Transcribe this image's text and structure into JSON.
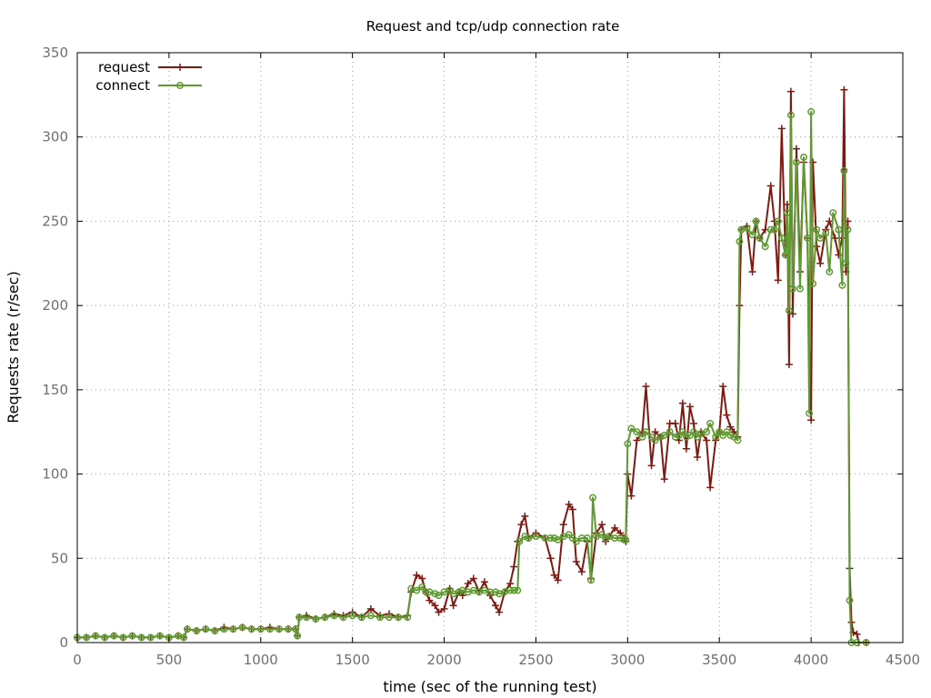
{
  "chart_data": {
    "type": "line",
    "title": "Request and tcp/udp connection rate",
    "xlabel": "time (sec of the running test)",
    "ylabel": "Requests rate (r/sec)",
    "xlim": [
      0,
      4500
    ],
    "ylim": [
      0,
      350
    ],
    "xticks": [
      0,
      500,
      1000,
      1500,
      2000,
      2500,
      3000,
      3500,
      4000,
      4500
    ],
    "yticks": [
      0,
      50,
      100,
      150,
      200,
      250,
      300,
      350
    ],
    "grid": true,
    "legend_position": "top-left",
    "series": [
      {
        "name": "request",
        "color": "#7f1a12",
        "marker": "plus",
        "points": [
          [
            0,
            3
          ],
          [
            50,
            3
          ],
          [
            100,
            4
          ],
          [
            150,
            3
          ],
          [
            200,
            4
          ],
          [
            250,
            3
          ],
          [
            300,
            4
          ],
          [
            350,
            3
          ],
          [
            400,
            3
          ],
          [
            450,
            4
          ],
          [
            500,
            3
          ],
          [
            550,
            4
          ],
          [
            580,
            3
          ],
          [
            600,
            8
          ],
          [
            650,
            7
          ],
          [
            700,
            8
          ],
          [
            750,
            7
          ],
          [
            800,
            9
          ],
          [
            850,
            8
          ],
          [
            900,
            9
          ],
          [
            950,
            8
          ],
          [
            1000,
            8
          ],
          [
            1050,
            9
          ],
          [
            1100,
            8
          ],
          [
            1150,
            8
          ],
          [
            1190,
            8
          ],
          [
            1200,
            4
          ],
          [
            1210,
            15
          ],
          [
            1250,
            16
          ],
          [
            1300,
            14
          ],
          [
            1350,
            15
          ],
          [
            1400,
            17
          ],
          [
            1450,
            16
          ],
          [
            1500,
            18
          ],
          [
            1550,
            15
          ],
          [
            1600,
            20
          ],
          [
            1650,
            16
          ],
          [
            1700,
            17
          ],
          [
            1750,
            15
          ],
          [
            1800,
            16
          ],
          [
            1820,
            30
          ],
          [
            1850,
            40
          ],
          [
            1880,
            38
          ],
          [
            1900,
            30
          ],
          [
            1920,
            25
          ],
          [
            1950,
            22
          ],
          [
            1970,
            18
          ],
          [
            2000,
            20
          ],
          [
            2030,
            32
          ],
          [
            2050,
            22
          ],
          [
            2080,
            30
          ],
          [
            2100,
            28
          ],
          [
            2130,
            35
          ],
          [
            2160,
            38
          ],
          [
            2190,
            30
          ],
          [
            2220,
            36
          ],
          [
            2250,
            28
          ],
          [
            2280,
            22
          ],
          [
            2300,
            18
          ],
          [
            2330,
            30
          ],
          [
            2360,
            35
          ],
          [
            2380,
            45
          ],
          [
            2400,
            60
          ],
          [
            2420,
            70
          ],
          [
            2440,
            75
          ],
          [
            2460,
            62
          ],
          [
            2500,
            65
          ],
          [
            2550,
            62
          ],
          [
            2580,
            50
          ],
          [
            2600,
            40
          ],
          [
            2620,
            37
          ],
          [
            2650,
            70
          ],
          [
            2680,
            82
          ],
          [
            2700,
            79
          ],
          [
            2720,
            48
          ],
          [
            2750,
            42
          ],
          [
            2780,
            60
          ],
          [
            2800,
            38
          ],
          [
            2830,
            65
          ],
          [
            2860,
            70
          ],
          [
            2880,
            60
          ],
          [
            2900,
            63
          ],
          [
            2930,
            68
          ],
          [
            2960,
            65
          ],
          [
            2980,
            62
          ],
          [
            2990,
            60
          ],
          [
            3000,
            100
          ],
          [
            3020,
            87
          ],
          [
            3050,
            120
          ],
          [
            3080,
            125
          ],
          [
            3100,
            152
          ],
          [
            3130,
            105
          ],
          [
            3150,
            125
          ],
          [
            3180,
            122
          ],
          [
            3200,
            97
          ],
          [
            3230,
            130
          ],
          [
            3260,
            130
          ],
          [
            3280,
            120
          ],
          [
            3300,
            142
          ],
          [
            3320,
            115
          ],
          [
            3340,
            140
          ],
          [
            3360,
            130
          ],
          [
            3380,
            110
          ],
          [
            3400,
            125
          ],
          [
            3430,
            120
          ],
          [
            3450,
            92
          ],
          [
            3480,
            120
          ],
          [
            3500,
            125
          ],
          [
            3520,
            152
          ],
          [
            3540,
            135
          ],
          [
            3560,
            128
          ],
          [
            3580,
            125
          ],
          [
            3600,
            122
          ],
          [
            3610,
            200
          ],
          [
            3620,
            245
          ],
          [
            3650,
            247
          ],
          [
            3680,
            220
          ],
          [
            3700,
            250
          ],
          [
            3720,
            240
          ],
          [
            3750,
            245
          ],
          [
            3780,
            271
          ],
          [
            3800,
            250
          ],
          [
            3820,
            215
          ],
          [
            3840,
            305
          ],
          [
            3860,
            230
          ],
          [
            3870,
            260
          ],
          [
            3880,
            165
          ],
          [
            3890,
            327
          ],
          [
            3900,
            195
          ],
          [
            3920,
            293
          ],
          [
            3940,
            220
          ],
          [
            3960,
            285
          ],
          [
            3980,
            240
          ],
          [
            4000,
            132
          ],
          [
            4010,
            285
          ],
          [
            4030,
            235
          ],
          [
            4050,
            225
          ],
          [
            4080,
            245
          ],
          [
            4100,
            250
          ],
          [
            4130,
            240
          ],
          [
            4150,
            230
          ],
          [
            4170,
            240
          ],
          [
            4180,
            328
          ],
          [
            4190,
            220
          ],
          [
            4200,
            250
          ],
          [
            4210,
            44
          ],
          [
            4220,
            12
          ],
          [
            4230,
            6
          ],
          [
            4250,
            5
          ],
          [
            4260,
            0
          ],
          [
            4300,
            0
          ]
        ]
      },
      {
        "name": "connect",
        "color": "#5e9a31",
        "marker": "circle",
        "points": [
          [
            0,
            3
          ],
          [
            50,
            3
          ],
          [
            100,
            4
          ],
          [
            150,
            3
          ],
          [
            200,
            4
          ],
          [
            250,
            3
          ],
          [
            300,
            4
          ],
          [
            350,
            3
          ],
          [
            400,
            3
          ],
          [
            450,
            4
          ],
          [
            500,
            3
          ],
          [
            550,
            4
          ],
          [
            580,
            3
          ],
          [
            600,
            8
          ],
          [
            650,
            7
          ],
          [
            700,
            8
          ],
          [
            750,
            7
          ],
          [
            800,
            8
          ],
          [
            850,
            8
          ],
          [
            900,
            9
          ],
          [
            950,
            8
          ],
          [
            1000,
            8
          ],
          [
            1050,
            8
          ],
          [
            1100,
            8
          ],
          [
            1150,
            8
          ],
          [
            1190,
            8
          ],
          [
            1200,
            4
          ],
          [
            1210,
            15
          ],
          [
            1250,
            15
          ],
          [
            1300,
            14
          ],
          [
            1350,
            15
          ],
          [
            1400,
            16
          ],
          [
            1450,
            15
          ],
          [
            1500,
            16
          ],
          [
            1550,
            15
          ],
          [
            1600,
            16
          ],
          [
            1650,
            15
          ],
          [
            1700,
            15
          ],
          [
            1750,
            15
          ],
          [
            1800,
            15
          ],
          [
            1820,
            32
          ],
          [
            1850,
            31
          ],
          [
            1880,
            33
          ],
          [
            1900,
            30
          ],
          [
            1920,
            30
          ],
          [
            1950,
            29
          ],
          [
            1970,
            28
          ],
          [
            2000,
            30
          ],
          [
            2030,
            31
          ],
          [
            2050,
            29
          ],
          [
            2080,
            30
          ],
          [
            2100,
            31
          ],
          [
            2130,
            30
          ],
          [
            2160,
            31
          ],
          [
            2190,
            30
          ],
          [
            2220,
            31
          ],
          [
            2250,
            30
          ],
          [
            2280,
            30
          ],
          [
            2300,
            29
          ],
          [
            2330,
            30
          ],
          [
            2360,
            31
          ],
          [
            2380,
            31
          ],
          [
            2400,
            31
          ],
          [
            2410,
            60
          ],
          [
            2440,
            63
          ],
          [
            2460,
            62
          ],
          [
            2500,
            63
          ],
          [
            2550,
            62
          ],
          [
            2580,
            62
          ],
          [
            2600,
            62
          ],
          [
            2620,
            61
          ],
          [
            2650,
            63
          ],
          [
            2680,
            64
          ],
          [
            2700,
            62
          ],
          [
            2720,
            60
          ],
          [
            2750,
            62
          ],
          [
            2780,
            62
          ],
          [
            2800,
            37
          ],
          [
            2810,
            86
          ],
          [
            2830,
            63
          ],
          [
            2860,
            64
          ],
          [
            2880,
            62
          ],
          [
            2900,
            63
          ],
          [
            2930,
            62
          ],
          [
            2960,
            62
          ],
          [
            2980,
            61
          ],
          [
            2990,
            61
          ],
          [
            3000,
            118
          ],
          [
            3020,
            127
          ],
          [
            3050,
            125
          ],
          [
            3080,
            122
          ],
          [
            3100,
            125
          ],
          [
            3130,
            122
          ],
          [
            3150,
            120
          ],
          [
            3180,
            122
          ],
          [
            3200,
            123
          ],
          [
            3230,
            125
          ],
          [
            3260,
            122
          ],
          [
            3280,
            123
          ],
          [
            3300,
            125
          ],
          [
            3320,
            122
          ],
          [
            3340,
            123
          ],
          [
            3360,
            125
          ],
          [
            3380,
            122
          ],
          [
            3400,
            124
          ],
          [
            3430,
            125
          ],
          [
            3450,
            130
          ],
          [
            3480,
            122
          ],
          [
            3500,
            125
          ],
          [
            3520,
            123
          ],
          [
            3540,
            125
          ],
          [
            3560,
            123
          ],
          [
            3580,
            122
          ],
          [
            3600,
            120
          ],
          [
            3610,
            238
          ],
          [
            3620,
            245
          ],
          [
            3650,
            246
          ],
          [
            3680,
            242
          ],
          [
            3700,
            250
          ],
          [
            3720,
            240
          ],
          [
            3750,
            235
          ],
          [
            3780,
            245
          ],
          [
            3800,
            245
          ],
          [
            3820,
            250
          ],
          [
            3840,
            240
          ],
          [
            3860,
            230
          ],
          [
            3870,
            255
          ],
          [
            3880,
            197
          ],
          [
            3890,
            313
          ],
          [
            3900,
            210
          ],
          [
            3920,
            285
          ],
          [
            3940,
            210
          ],
          [
            3960,
            288
          ],
          [
            3980,
            240
          ],
          [
            3990,
            136
          ],
          [
            4000,
            315
          ],
          [
            4010,
            213
          ],
          [
            4030,
            245
          ],
          [
            4050,
            240
          ],
          [
            4080,
            243
          ],
          [
            4100,
            220
          ],
          [
            4120,
            255
          ],
          [
            4150,
            245
          ],
          [
            4170,
            212
          ],
          [
            4180,
            280
          ],
          [
            4190,
            225
          ],
          [
            4200,
            245
          ],
          [
            4210,
            25
          ],
          [
            4220,
            0
          ],
          [
            4250,
            0
          ],
          [
            4300,
            0
          ]
        ]
      }
    ]
  }
}
